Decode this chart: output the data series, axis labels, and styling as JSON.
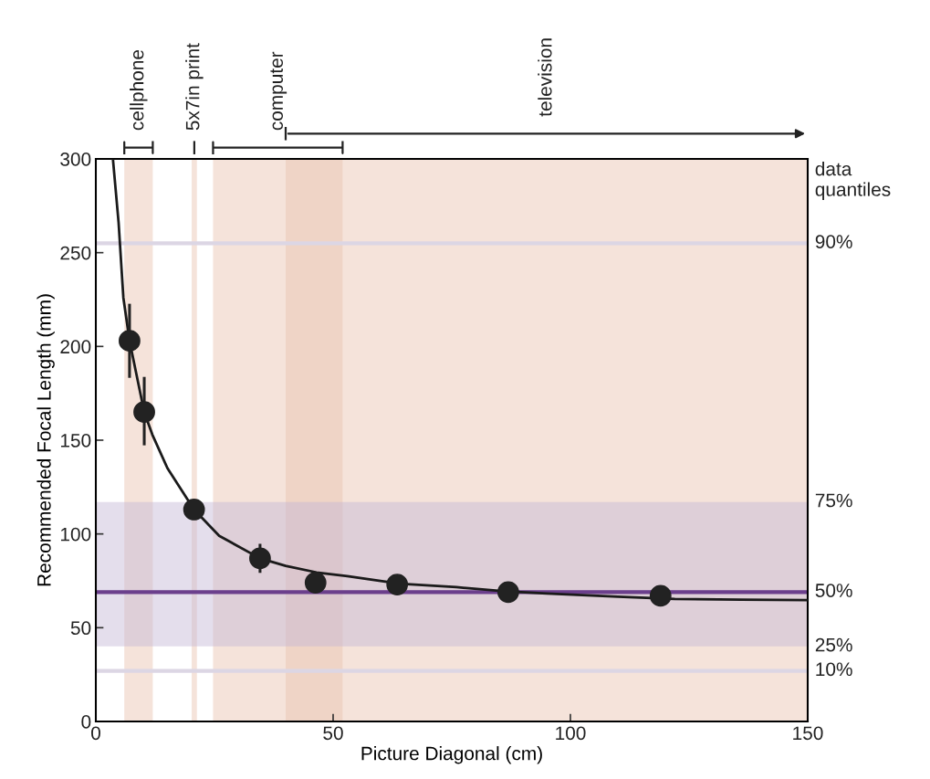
{
  "chart_data": {
    "type": "scatter",
    "xlabel": "Picture Diagonal (cm)",
    "ylabel": "Recommended Focal Length (mm)",
    "xlim": [
      0,
      150
    ],
    "ylim": [
      0,
      300
    ],
    "xticks": [
      0,
      50,
      100,
      150
    ],
    "yticks": [
      0,
      50,
      100,
      150,
      200,
      250,
      300
    ],
    "grid": false,
    "series": [
      {
        "type": "line",
        "color": "#1a1a1a",
        "marker": "none",
        "line_style": "solid",
        "x": [
          3.6,
          4.8,
          5.8,
          7.1,
          10.2,
          11.9,
          15.1,
          20.7,
          26,
          34.6,
          40,
          46.5,
          53,
          57,
          64,
          76,
          86,
          95,
          110,
          122,
          136,
          150
        ],
        "values": [
          300,
          266,
          226,
          203,
          165,
          153,
          135,
          113,
          99,
          87,
          83,
          79.5,
          77.5,
          76,
          73.5,
          71.6,
          69.5,
          68.2,
          66.5,
          65.3,
          65,
          64.7
        ]
      },
      {
        "color": "#222222",
        "marker": "circle",
        "x": [
          7.1,
          10.2,
          20.7,
          34.6,
          46.3,
          63.5,
          86.9,
          119
        ],
        "values": [
          203,
          165,
          113,
          87,
          74,
          73,
          69,
          67
        ],
        "errors": [
          [
            184,
            222
          ],
          [
            148,
            183
          ],
          null,
          [
            80,
            94
          ],
          null,
          null,
          null,
          null
        ]
      }
    ],
    "bands": [
      {
        "axis": "x",
        "from": 6,
        "to": 12,
        "label": "cellphone",
        "color": "#e8c2ae"
      },
      {
        "axis": "x",
        "from": 20.2,
        "to": 21.3,
        "label": "5x7in print",
        "color": "#e8c2ae"
      },
      {
        "axis": "x",
        "from": 24.7,
        "to": 52,
        "label": "computer",
        "color": "#e8c2ae"
      },
      {
        "axis": "x",
        "from": 40,
        "to": 150,
        "label": "television",
        "color": "#e8c2ae"
      },
      {
        "axis": "y",
        "from": 40,
        "to": 117,
        "color": "#c4b6d4"
      }
    ],
    "ref_lines": [
      {
        "axis": "y",
        "value": 255,
        "color": "#dcd6e4"
      },
      {
        "axis": "y",
        "value": 69,
        "color": "#6b3f8c"
      },
      {
        "axis": "y",
        "value": 27,
        "color": "#dcd6e4"
      }
    ],
    "annotations": [
      "data quantiles",
      "90%",
      "75%",
      "50%",
      "25%",
      "10%"
    ]
  }
}
